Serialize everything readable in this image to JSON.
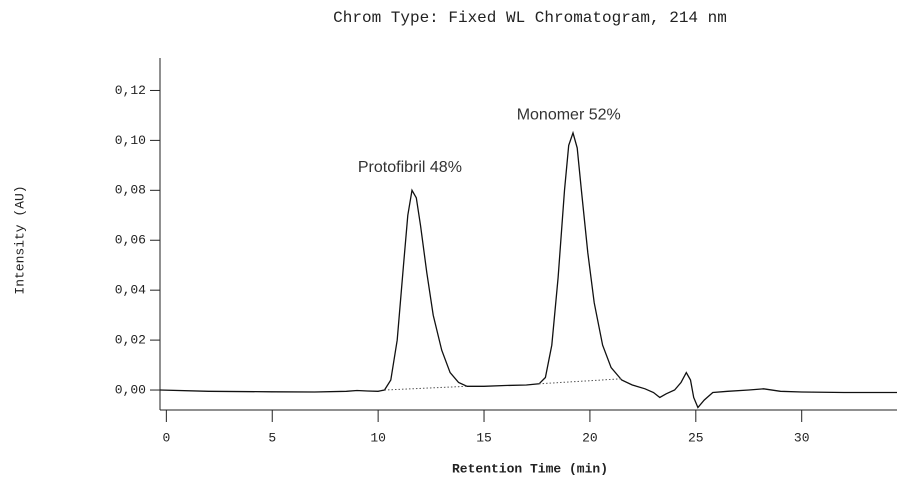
{
  "chart_data": {
    "type": "line",
    "title": "Chrom Type: Fixed WL Chromatogram, 214 nm",
    "xlabel": "Retention Time (min)",
    "ylabel": "Intensity (AU)",
    "xlim": [
      -0.3,
      34.5
    ],
    "ylim": [
      -0.008,
      0.133
    ],
    "xticks": [
      0,
      5,
      10,
      15,
      20,
      25,
      30
    ],
    "yticks": [
      {
        "value": 0.0,
        "label": "0,00"
      },
      {
        "value": 0.02,
        "label": "0,02"
      },
      {
        "value": 0.04,
        "label": "0,04"
      },
      {
        "value": 0.06,
        "label": "0,06"
      },
      {
        "value": 0.08,
        "label": "0,08"
      },
      {
        "value": 0.1,
        "label": "0,10"
      },
      {
        "value": 0.12,
        "label": "0,12"
      }
    ],
    "color": "#111111",
    "x": [
      -0.3,
      2,
      5,
      7,
      8.5,
      9,
      9.5,
      10,
      10.3,
      10.6,
      10.9,
      11.2,
      11.4,
      11.6,
      11.8,
      12.0,
      12.3,
      12.6,
      13.0,
      13.4,
      13.8,
      14.2,
      15,
      16,
      17,
      17.6,
      17.9,
      18.2,
      18.5,
      18.8,
      19.0,
      19.2,
      19.4,
      19.6,
      19.9,
      20.2,
      20.6,
      21.0,
      21.5,
      22,
      22.6,
      23.0,
      23.3,
      23.6,
      24.0,
      24.3,
      24.55,
      24.75,
      24.9,
      25.1,
      25.4,
      25.8,
      26.5,
      27.5,
      28.2,
      29,
      30,
      32,
      34.5
    ],
    "values": [
      0.0,
      -0.0005,
      -0.0007,
      -0.0008,
      -0.0005,
      -0.0002,
      -0.0004,
      -0.0005,
      0.0,
      0.004,
      0.02,
      0.05,
      0.07,
      0.08,
      0.077,
      0.066,
      0.047,
      0.03,
      0.016,
      0.007,
      0.003,
      0.0015,
      0.0015,
      0.0018,
      0.002,
      0.0025,
      0.005,
      0.018,
      0.045,
      0.08,
      0.098,
      0.103,
      0.097,
      0.08,
      0.055,
      0.035,
      0.018,
      0.009,
      0.004,
      0.002,
      0.0005,
      -0.001,
      -0.003,
      -0.0015,
      0.0,
      0.003,
      0.007,
      0.004,
      -0.003,
      -0.007,
      -0.004,
      -0.001,
      -0.0005,
      0.0,
      0.0005,
      -0.0005,
      -0.0008,
      -0.001,
      -0.001
    ],
    "baselines": [
      {
        "x": [
          10.3,
          14.2
        ],
        "y": [
          0.0,
          0.0015
        ]
      },
      {
        "x": [
          17.6,
          21.5
        ],
        "y": [
          0.0025,
          0.0045
        ]
      }
    ],
    "annotations": [
      {
        "text": "Protofibril 48%",
        "x": 11.5,
        "y": 0.089
      },
      {
        "text": "Monomer 52%",
        "x": 19.0,
        "y": 0.11
      }
    ]
  }
}
